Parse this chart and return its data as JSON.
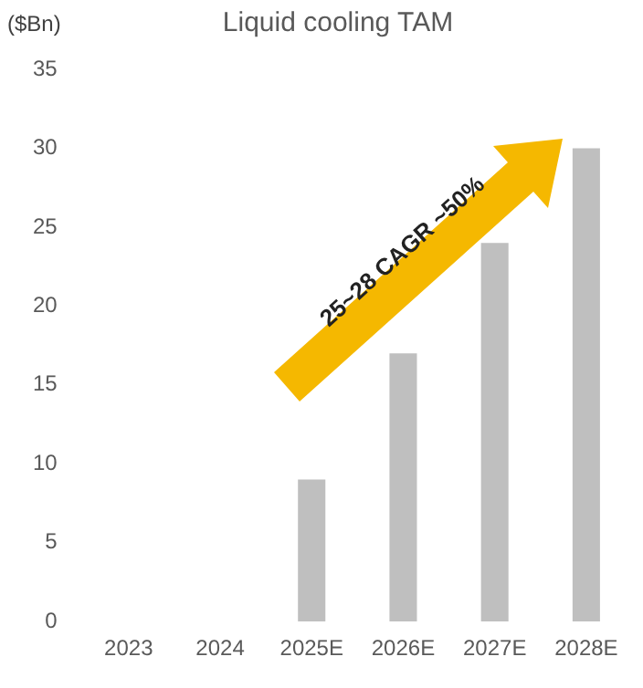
{
  "chart_data": {
    "type": "bar",
    "title": "Liquid cooling TAM",
    "ylabel": "($Bn)",
    "categories": [
      "2023",
      "2024",
      "2025E",
      "2026E",
      "2027E",
      "2028E"
    ],
    "values": [
      null,
      null,
      9,
      17,
      24,
      30
    ],
    "color": "#bfbfbf",
    "ylim": [
      0,
      35
    ],
    "yticks": [
      0,
      5,
      10,
      15,
      20,
      25,
      30,
      35
    ],
    "grid": false,
    "annotations": [
      "25~28 CAGR ~50%"
    ]
  }
}
